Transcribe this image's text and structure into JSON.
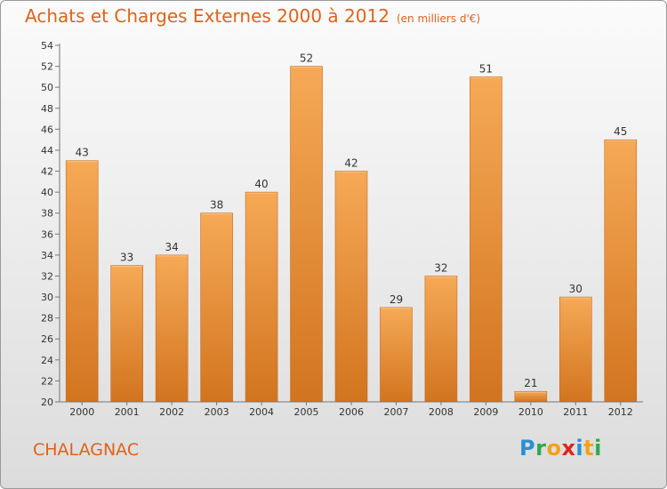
{
  "header": {
    "title": "Achats et Charges Externes 2000 à 2012",
    "unit": "(en milliers d'€)"
  },
  "footer": {
    "place": "CHALAGNAC",
    "logo_letters": [
      {
        "ch": "P",
        "color": "#2a8fd4"
      },
      {
        "ch": "r",
        "color": "#2fa84f"
      },
      {
        "ch": "o",
        "color": "#f3a11b"
      },
      {
        "ch": "x",
        "color": "#e2231a"
      },
      {
        "ch": "i",
        "color": "#2a8fd4"
      },
      {
        "ch": "t",
        "color": "#f3a11b"
      },
      {
        "ch": "i",
        "color": "#2fa84f"
      }
    ]
  },
  "colors": {
    "title": "#e0621b",
    "bar_light": "#f6a956",
    "bar_dark": "#d2741f"
  },
  "chart_data": {
    "type": "bar",
    "title": "Achats et Charges Externes 2000 à 2012",
    "subtitle": "(en milliers d'€)",
    "categories": [
      "2000",
      "2001",
      "2002",
      "2003",
      "2004",
      "2005",
      "2006",
      "2007",
      "2008",
      "2009",
      "2010",
      "2011",
      "2012"
    ],
    "values": [
      43,
      33,
      34,
      38,
      40,
      52,
      42,
      29,
      32,
      51,
      21,
      30,
      45
    ],
    "ylim": [
      20,
      54
    ],
    "yticks": [
      20,
      22,
      24,
      26,
      28,
      30,
      32,
      34,
      36,
      38,
      40,
      42,
      44,
      46,
      48,
      50,
      52,
      54
    ],
    "grid": false,
    "xlabel": "",
    "ylabel": ""
  }
}
